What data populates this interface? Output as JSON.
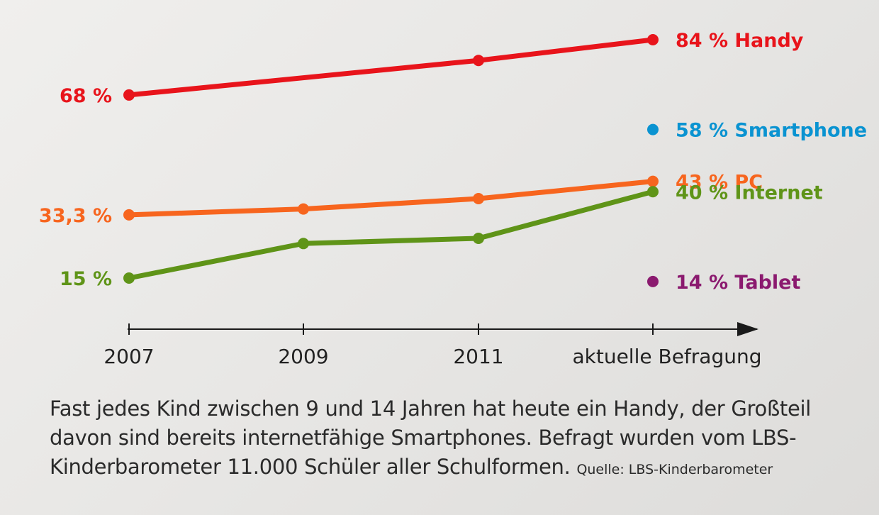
{
  "chart_data": {
    "type": "line",
    "categories": [
      "2007",
      "2009",
      "2011",
      "aktuelle Befragung"
    ],
    "ylim": [
      0,
      100
    ],
    "grid": false,
    "series": [
      {
        "name": "Handy",
        "color": "#e8141b",
        "values": [
          68,
          null,
          78,
          84
        ],
        "start_label": "68 %",
        "end_label": "84 % Handy"
      },
      {
        "name": "PC",
        "color": "#f7651e",
        "values": [
          33.3,
          35,
          38,
          43
        ],
        "start_label": "33,3 %",
        "end_label": "43 % PC"
      },
      {
        "name": "Internet",
        "color": "#5f9418",
        "values": [
          15,
          25,
          26.5,
          40
        ],
        "start_label": "15 %",
        "end_label": "40 % Internet"
      },
      {
        "name": "Smartphone",
        "color": "#0a93d1",
        "values": [
          null,
          null,
          null,
          58
        ],
        "end_label": "58 % Smartphone"
      },
      {
        "name": "Tablet",
        "color": "#8b1a6f",
        "values": [
          null,
          null,
          null,
          14
        ],
        "end_label": "14 % Tablet"
      }
    ]
  },
  "caption": {
    "text": "Fast jedes Kind zwischen 9 und 14 Jahren hat heute ein Handy, der Großteil davon sind bereits internetfähige Smartphones. Befragt wurden vom LBS-Kinderbarometer 11.000 Schüler aller Schulformen.",
    "source": "Quelle: LBS-Kinderbarometer"
  }
}
